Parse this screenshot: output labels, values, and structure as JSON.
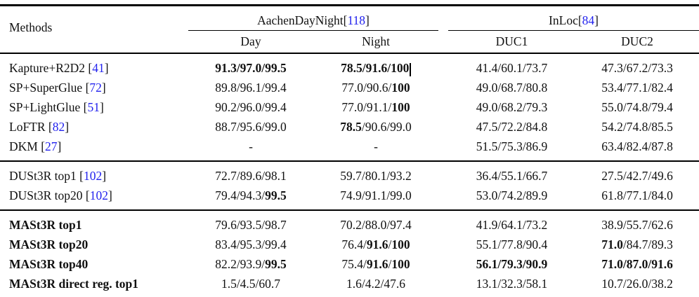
{
  "colors": {
    "citation_blue": "#2222ee",
    "text": "#111111",
    "rule": "#000000"
  },
  "table": {
    "methods_header": "Methods",
    "citation_brackets": [
      "[",
      "]"
    ],
    "groups": [
      {
        "label": "AachenDayNight",
        "cite": "118",
        "columns": [
          "Day",
          "Night"
        ]
      },
      {
        "label": "InLoc",
        "cite": "84",
        "columns": [
          "DUC1",
          "DUC2"
        ]
      }
    ],
    "blocks": [
      {
        "rows": [
          {
            "method": {
              "text": "Kapture+R2D2",
              "cite": "41",
              "bold": false
            },
            "cells": [
              {
                "segs": [
                  {
                    "t": "91.3/97.0/99.5",
                    "b": true
                  }
                ]
              },
              {
                "segs": [
                  {
                    "t": "78.5/91.6/100",
                    "b": true
                  }
                ],
                "caret": true
              },
              {
                "segs": [
                  {
                    "t": "41.4/60.1/73.7",
                    "b": false
                  }
                ]
              },
              {
                "segs": [
                  {
                    "t": "47.3/67.2/73.3",
                    "b": false
                  }
                ]
              }
            ]
          },
          {
            "method": {
              "text": "SP+SuperGlue",
              "cite": "72",
              "bold": false
            },
            "cells": [
              {
                "segs": [
                  {
                    "t": "89.8/96.1/99.4",
                    "b": false
                  }
                ]
              },
              {
                "segs": [
                  {
                    "t": "77.0/90.6/",
                    "b": false
                  },
                  {
                    "t": "100",
                    "b": true
                  }
                ]
              },
              {
                "segs": [
                  {
                    "t": "49.0/68.7/80.8",
                    "b": false
                  }
                ]
              },
              {
                "segs": [
                  {
                    "t": "53.4/77.1/82.4",
                    "b": false
                  }
                ]
              }
            ]
          },
          {
            "method": {
              "text": "SP+LightGlue",
              "cite": "51",
              "bold": false
            },
            "cells": [
              {
                "segs": [
                  {
                    "t": "90.2/96.0/99.4",
                    "b": false
                  }
                ]
              },
              {
                "segs": [
                  {
                    "t": "77.0/91.1/",
                    "b": false
                  },
                  {
                    "t": "100",
                    "b": true
                  }
                ]
              },
              {
                "segs": [
                  {
                    "t": "49.0/68.2/79.3",
                    "b": false
                  }
                ]
              },
              {
                "segs": [
                  {
                    "t": "55.0/74.8/79.4",
                    "b": false
                  }
                ]
              }
            ]
          },
          {
            "method": {
              "text": "LoFTR",
              "cite": "82",
              "bold": false
            },
            "cells": [
              {
                "segs": [
                  {
                    "t": "88.7/95.6/99.0",
                    "b": false
                  }
                ]
              },
              {
                "segs": [
                  {
                    "t": "78.5",
                    "b": true
                  },
                  {
                    "t": "/90.6/99.0",
                    "b": false
                  }
                ]
              },
              {
                "segs": [
                  {
                    "t": "47.5/72.2/84.8",
                    "b": false
                  }
                ]
              },
              {
                "segs": [
                  {
                    "t": "54.2/74.8/85.5",
                    "b": false
                  }
                ]
              }
            ]
          },
          {
            "method": {
              "text": "DKM",
              "cite": "27",
              "bold": false
            },
            "cells": [
              {
                "segs": [
                  {
                    "t": "-",
                    "b": false
                  }
                ]
              },
              {
                "segs": [
                  {
                    "t": "-",
                    "b": false
                  }
                ]
              },
              {
                "segs": [
                  {
                    "t": "51.5/75.3/86.9",
                    "b": false
                  }
                ]
              },
              {
                "segs": [
                  {
                    "t": "63.4/82.4/87.8",
                    "b": false
                  }
                ]
              }
            ]
          }
        ]
      },
      {
        "rows": [
          {
            "method": {
              "text": "DUSt3R top1",
              "cite": "102",
              "bold": false
            },
            "cells": [
              {
                "segs": [
                  {
                    "t": "72.7/89.6/98.1",
                    "b": false
                  }
                ]
              },
              {
                "segs": [
                  {
                    "t": "59.7/80.1/93.2",
                    "b": false
                  }
                ]
              },
              {
                "segs": [
                  {
                    "t": "36.4/55.1/66.7",
                    "b": false
                  }
                ]
              },
              {
                "segs": [
                  {
                    "t": "27.5/42.7/49.6",
                    "b": false
                  }
                ]
              }
            ]
          },
          {
            "method": {
              "text": "DUSt3R top20",
              "cite": "102",
              "bold": false
            },
            "cells": [
              {
                "segs": [
                  {
                    "t": "79.4/94.3/",
                    "b": false
                  },
                  {
                    "t": "99.5",
                    "b": true
                  }
                ]
              },
              {
                "segs": [
                  {
                    "t": "74.9/91.1/99.0",
                    "b": false
                  }
                ]
              },
              {
                "segs": [
                  {
                    "t": "53.0/74.2/89.9",
                    "b": false
                  }
                ]
              },
              {
                "segs": [
                  {
                    "t": "61.8/77.1/84.0",
                    "b": false
                  }
                ]
              }
            ]
          }
        ]
      },
      {
        "rows": [
          {
            "method": {
              "text": "MASt3R top1",
              "cite": null,
              "bold": true
            },
            "cells": [
              {
                "segs": [
                  {
                    "t": "79.6/93.5/98.7",
                    "b": false
                  }
                ]
              },
              {
                "segs": [
                  {
                    "t": "70.2/88.0/97.4",
                    "b": false
                  }
                ]
              },
              {
                "segs": [
                  {
                    "t": "41.9/64.1/73.2",
                    "b": false
                  }
                ]
              },
              {
                "segs": [
                  {
                    "t": "38.9/55.7/62.6",
                    "b": false
                  }
                ]
              }
            ]
          },
          {
            "method": {
              "text": "MASt3R top20",
              "cite": null,
              "bold": true
            },
            "cells": [
              {
                "segs": [
                  {
                    "t": "83.4/95.3/99.4",
                    "b": false
                  }
                ]
              },
              {
                "segs": [
                  {
                    "t": "76.4/",
                    "b": false
                  },
                  {
                    "t": "91.6",
                    "b": true
                  },
                  {
                    "t": "/",
                    "b": false
                  },
                  {
                    "t": "100",
                    "b": true
                  }
                ]
              },
              {
                "segs": [
                  {
                    "t": "55.1/77.8/90.4",
                    "b": false
                  }
                ]
              },
              {
                "segs": [
                  {
                    "t": "71.0",
                    "b": true
                  },
                  {
                    "t": "/84.7/89.3",
                    "b": false
                  }
                ]
              }
            ]
          },
          {
            "method": {
              "text": "MASt3R top40",
              "cite": null,
              "bold": true
            },
            "cells": [
              {
                "segs": [
                  {
                    "t": "82.2/93.9/",
                    "b": false
                  },
                  {
                    "t": "99.5",
                    "b": true
                  }
                ]
              },
              {
                "segs": [
                  {
                    "t": "75.4/",
                    "b": false
                  },
                  {
                    "t": "91.6",
                    "b": true
                  },
                  {
                    "t": "/",
                    "b": false
                  },
                  {
                    "t": "100",
                    "b": true
                  }
                ]
              },
              {
                "segs": [
                  {
                    "t": "56.1/79.3/90.9",
                    "b": true
                  }
                ]
              },
              {
                "segs": [
                  {
                    "t": "71.0/87.0/91.6",
                    "b": true
                  }
                ]
              }
            ]
          },
          {
            "method": {
              "text": "MASt3R direct reg. top1",
              "cite": null,
              "bold": true
            },
            "cells": [
              {
                "segs": [
                  {
                    "t": "1.5/4.5/60.7",
                    "b": false
                  }
                ]
              },
              {
                "segs": [
                  {
                    "t": "1.6/4.2/47.6",
                    "b": false
                  }
                ]
              },
              {
                "segs": [
                  {
                    "t": "13.1/32.3/58.1",
                    "b": false
                  }
                ]
              },
              {
                "segs": [
                  {
                    "t": "10.7/26.0/38.2",
                    "b": false
                  }
                ]
              }
            ]
          }
        ]
      }
    ]
  },
  "chart_data": {
    "type": "table",
    "columns": [
      "Methods",
      "AachenDayNight Day",
      "AachenDayNight Night",
      "InLoc DUC1",
      "InLoc DUC2"
    ],
    "rows": [
      [
        "Kapture+R2D2 [41]",
        "91.3/97.0/99.5",
        "78.5/91.6/100",
        "41.4/60.1/73.7",
        "47.3/67.2/73.3"
      ],
      [
        "SP+SuperGlue [72]",
        "89.8/96.1/99.4",
        "77.0/90.6/100",
        "49.0/68.7/80.8",
        "53.4/77.1/82.4"
      ],
      [
        "SP+LightGlue [51]",
        "90.2/96.0/99.4",
        "77.0/91.1/100",
        "49.0/68.2/79.3",
        "55.0/74.8/79.4"
      ],
      [
        "LoFTR [82]",
        "88.7/95.6/99.0",
        "78.5/90.6/99.0",
        "47.5/72.2/84.8",
        "54.2/74.8/85.5"
      ],
      [
        "DKM [27]",
        "-",
        "-",
        "51.5/75.3/86.9",
        "63.4/82.4/87.8"
      ],
      [
        "DUSt3R top1 [102]",
        "72.7/89.6/98.1",
        "59.7/80.1/93.2",
        "36.4/55.1/66.7",
        "27.5/42.7/49.6"
      ],
      [
        "DUSt3R top20 [102]",
        "79.4/94.3/99.5",
        "74.9/91.1/99.0",
        "53.0/74.2/89.9",
        "61.8/77.1/84.0"
      ],
      [
        "MASt3R top1",
        "79.6/93.5/98.7",
        "70.2/88.0/97.4",
        "41.9/64.1/73.2",
        "38.9/55.7/62.6"
      ],
      [
        "MASt3R top20",
        "83.4/95.3/99.4",
        "76.4/91.6/100",
        "55.1/77.8/90.4",
        "71.0/84.7/89.3"
      ],
      [
        "MASt3R top40",
        "82.2/93.9/99.5",
        "75.4/91.6/100",
        "56.1/79.3/90.9",
        "71.0/87.0/91.6"
      ],
      [
        "MASt3R direct reg. top1",
        "1.5/4.5/60.7",
        "1.6/4.2/47.6",
        "13.1/32.3/58.1",
        "10.7/26.0/38.2"
      ]
    ]
  }
}
